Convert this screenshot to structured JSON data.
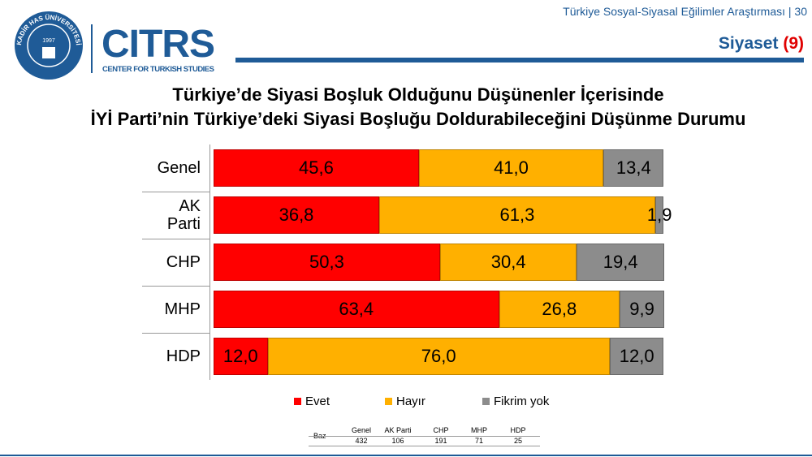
{
  "header": {
    "survey": "Türkiye Sosyal-Siyasal Eğilimler Araştırması",
    "page": 30,
    "section": "Siyaset",
    "section_number": "(9)"
  },
  "logo": {
    "university": "KADİR HAS ÜNİVERSİTESİ",
    "year": "1997",
    "name": "CITRS",
    "subtitle": "CENTER FOR TURKISH STUDIES"
  },
  "chart_data": {
    "type": "stacked_bar_horizontal",
    "title": "Türkiye’de Siyasi Boşluk Olduğunu Düşünenler İçerisinde\nİYİ Parti’nin Türkiye’deki Siyasi Boşluğu Doldurabileceğini Düşünme Durumu",
    "categories": [
      "Genel",
      "AK Parti",
      "CHP",
      "MHP",
      "HDP"
    ],
    "series": [
      {
        "name": "Evet",
        "color": "#ff0000",
        "values": [
          45.6,
          36.8,
          50.3,
          63.4,
          12.0
        ],
        "value_labels": [
          "45,6",
          "36,8",
          "50,3",
          "63,4",
          "12,0"
        ]
      },
      {
        "name": "Hayır",
        "color": "#ffb000",
        "values": [
          41.0,
          61.3,
          30.4,
          26.8,
          76.0
        ],
        "value_labels": [
          "41,0",
          "61,3",
          "30,4",
          "26,8",
          "76,0"
        ]
      },
      {
        "name": "Fikrim yok",
        "color": "#8c8c8c",
        "values": [
          13.4,
          1.9,
          19.4,
          9.9,
          12.0
        ],
        "value_labels": [
          "13,4",
          "1,9",
          "19,4",
          "9,9",
          "12,0"
        ]
      }
    ]
  },
  "base_table": {
    "label": "Baz",
    "columns": [
      "Genel",
      "AK Parti",
      "CHP",
      "MHP",
      "HDP"
    ],
    "values": [
      432,
      106,
      191,
      71,
      25
    ]
  }
}
